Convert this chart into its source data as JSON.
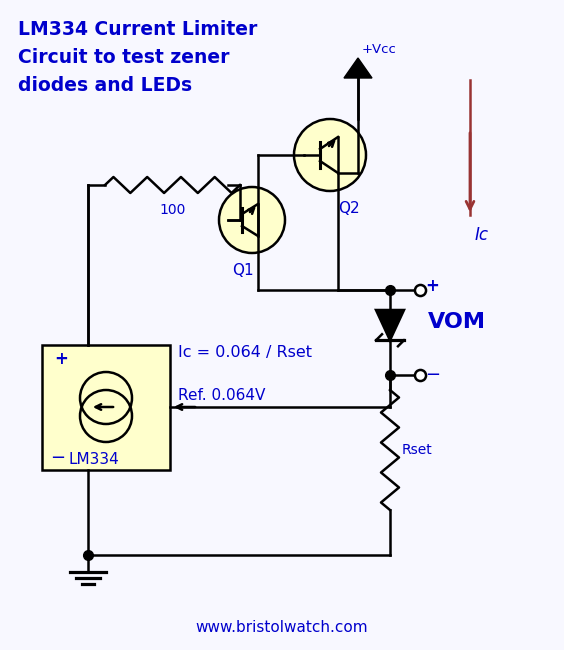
{
  "title_lines": [
    "LM334 Current Limiter",
    "Circuit to test zener",
    "diodes and LEDs"
  ],
  "bc": "#0000cc",
  "cc": "#000000",
  "rc": "#993333",
  "tf": "#ffffcc",
  "bg": "#f8f8ff",
  "website": "www.bristolwatch.com",
  "title_fontsize": 13.5,
  "lw": 1.8
}
